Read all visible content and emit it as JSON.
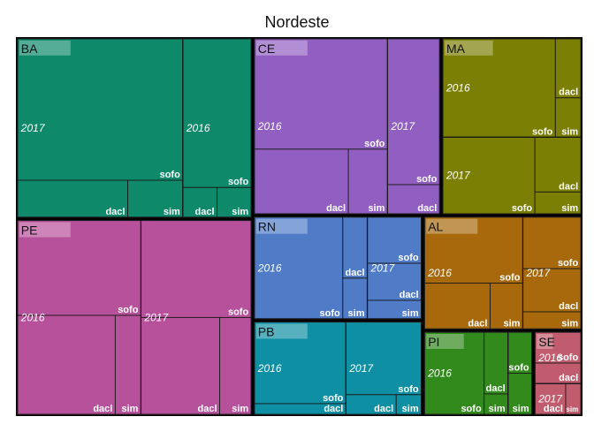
{
  "chart_data": {
    "type": "treemap",
    "title": "Nordeste",
    "states": [
      {
        "name": "BA",
        "color": "#0e8a6b",
        "years": [
          {
            "year": "2017",
            "leaves": [
              {
                "name": "sofo",
                "value": 46
              },
              {
                "name": "dacl",
                "value": 8
              },
              {
                "name": "sim",
                "value": 4
              }
            ]
          },
          {
            "year": "2016",
            "leaves": [
              {
                "name": "sofo",
                "value": 20
              },
              {
                "name": "dacl",
                "value": 2
              },
              {
                "name": "sim",
                "value": 2
              }
            ]
          }
        ]
      },
      {
        "name": "PE",
        "color": "#b8519b",
        "years": [
          {
            "year": "2016",
            "leaves": [
              {
                "name": "sofo",
                "value": 23
              },
              {
                "name": "dacl",
                "value": 19
              },
              {
                "name": "sim",
                "value": 5
              }
            ]
          },
          {
            "year": "2017",
            "leaves": [
              {
                "name": "sofo",
                "value": 21
              },
              {
                "name": "dacl",
                "value": 15
              },
              {
                "name": "sim",
                "value": 6
              }
            ]
          }
        ]
      },
      {
        "name": "CE",
        "color": "#915fc2",
        "years": [
          {
            "year": "2016",
            "leaves": [
              {
                "name": "sofo",
                "value": 29
              },
              {
                "name": "dacl",
                "value": 12
              },
              {
                "name": "sim",
                "value": 5
              }
            ]
          },
          {
            "year": "2017",
            "leaves": [
              {
                "name": "sofo",
                "value": 15
              },
              {
                "name": "dacl",
                "value": 3
              }
            ]
          }
        ]
      },
      {
        "name": "MA",
        "color": "#7b7f03",
        "years": [
          {
            "year": "2016",
            "leaves": [
              {
                "name": "sofo",
                "value": 22
              },
              {
                "name": "dacl",
                "value": 3
              },
              {
                "name": "sim",
                "value": 2
              }
            ]
          },
          {
            "year": "2017",
            "leaves": [
              {
                "name": "sofo",
                "value": 14
              },
              {
                "name": "dacl",
                "value": 5
              },
              {
                "name": "sim",
                "value": 2
              }
            ]
          }
        ]
      },
      {
        "name": "RN",
        "color": "#4f7bc7",
        "years": [
          {
            "year": "2016",
            "leaves": [
              {
                "name": "sofo",
                "value": 18
              },
              {
                "name": "dacl",
                "value": 3
              },
              {
                "name": "sim",
                "value": 2
              }
            ]
          },
          {
            "year": "2017",
            "leaves": [
              {
                "name": "sofo",
                "value": 5
              },
              {
                "name": "dacl",
                "value": 4
              },
              {
                "name": "sim",
                "value": 2
              }
            ]
          }
        ]
      },
      {
        "name": "PB",
        "color": "#0f8fa3",
        "years": [
          {
            "year": "2016",
            "leaves": [
              {
                "name": "sofo",
                "value": 15
              },
              {
                "name": "dacl",
                "value": 2
              }
            ]
          },
          {
            "year": "2017",
            "leaves": [
              {
                "name": "sofo",
                "value": 11
              },
              {
                "name": "dacl",
                "value": 2
              },
              {
                "name": "sim",
                "value": 1
              }
            ]
          }
        ]
      },
      {
        "name": "AL",
        "color": "#a7690c",
        "years": [
          {
            "year": "2016",
            "leaves": [
              {
                "name": "sofo",
                "value": 13
              },
              {
                "name": "dacl",
                "value": 6
              },
              {
                "name": "sim",
                "value": 3
              }
            ]
          },
          {
            "year": "2017",
            "leaves": [
              {
                "name": "sofo",
                "value": 6
              },
              {
                "name": "dacl",
                "value": 5
              },
              {
                "name": "sim",
                "value": 2
              }
            ]
          }
        ]
      },
      {
        "name": "PI",
        "color": "#32891c",
        "years": [
          {
            "year": "2016",
            "leaves": [
              {
                "name": "sofo",
                "value": 10
              },
              {
                "name": "dacl",
                "value": 3
              },
              {
                "name": "sim",
                "value": 1
              }
            ]
          },
          {
            "year": "2017",
            "leaves": [
              {
                "name": "sofo",
                "value": 2
              },
              {
                "name": "sim",
                "value": 2
              }
            ]
          }
        ]
      },
      {
        "name": "SE",
        "color": "#c15c6e",
        "years": [
          {
            "year": "2016",
            "leaves": [
              {
                "name": "sofo",
                "value": 3
              },
              {
                "name": "dacl",
                "value": 2
              }
            ]
          },
          {
            "year": "2017",
            "leaves": [
              {
                "name": "dacl",
                "value": 2
              },
              {
                "name": "sim",
                "value": 1
              }
            ]
          }
        ]
      }
    ]
  }
}
